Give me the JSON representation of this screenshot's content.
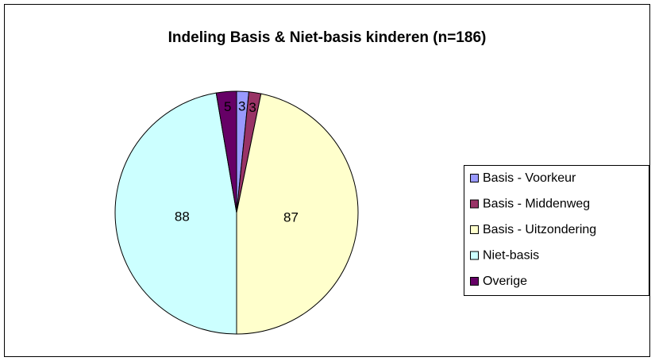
{
  "chart_data": {
    "type": "pie",
    "title": "Indeling Basis & Niet-basis kinderen (n=186)",
    "categories": [
      "Basis - Voorkeur",
      "Basis - Middenweg",
      "Basis - Uitzondering",
      "Niet-basis",
      "Overige"
    ],
    "values": [
      3,
      3,
      87,
      88,
      5
    ],
    "colors": [
      "#9999ff",
      "#993366",
      "#ffffcc",
      "#ccffff",
      "#660066"
    ],
    "legend": "right"
  }
}
